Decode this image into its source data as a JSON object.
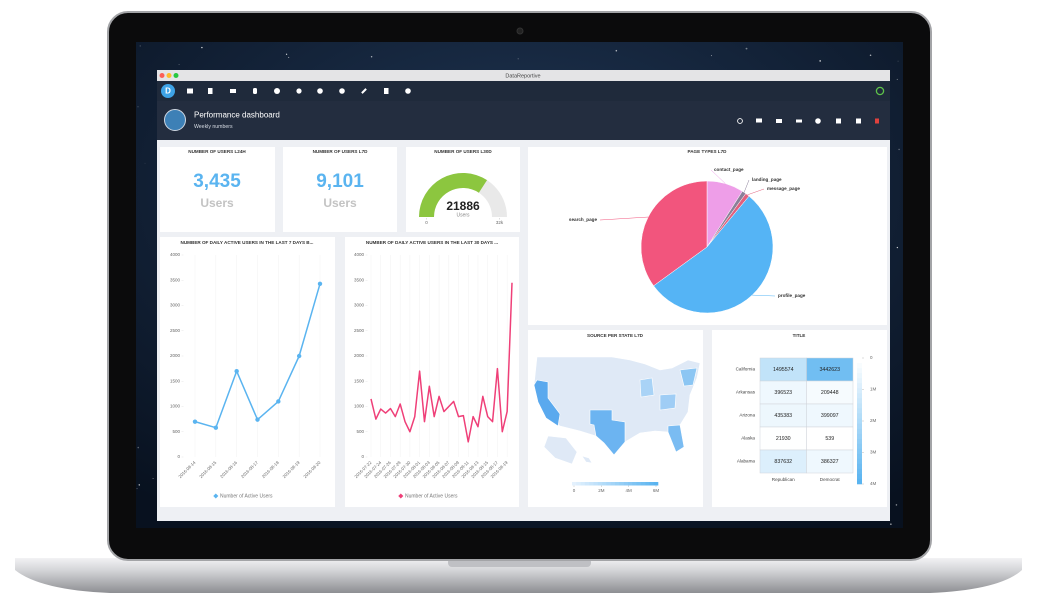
{
  "window_title": "DataReportive",
  "logo": "D",
  "header": {
    "title": "Performance dashboard",
    "subtitle": "Weekly numbers"
  },
  "kpis": [
    {
      "title": "NUMBER OF USERS L24H",
      "value": {
        "value": 3435,
        "label": "3,435"
      },
      "unit": "Users"
    },
    {
      "title": "NUMBER OF USERS L7D",
      "value": {
        "value": 9101,
        "label": "9,101"
      },
      "unit": "Users"
    }
  ],
  "chart_data": [
    {
      "type": "gauge",
      "title": "NUMBER OF USERS L30D",
      "value": 21886,
      "unit": "Users",
      "color": "#8cc63f",
      "lim": [
        0,
        32000
      ],
      "ticks": [
        0,
        {
          "value": 32000,
          "label": "32k"
        }
      ]
    },
    {
      "type": "line",
      "title": "NUMBER OF DAILY ACTIVE USERS IN THE LAST 7 DAYS B...",
      "categories": [
        "2016-08-14",
        "2016-08-15",
        "2016-08-16",
        "2016-08-17",
        "2016-08-18",
        "2016-08-19",
        "2016-08-20"
      ],
      "series": [
        {
          "name": "Number of Active Users",
          "color": "#5ab4f0",
          "values": [
            700,
            580,
            1700,
            740,
            1100,
            2000,
            3430
          ]
        }
      ],
      "markers": true,
      "ylim": [
        0,
        4000
      ],
      "yticks": [
        0,
        500,
        1000,
        1500,
        2000,
        2500,
        3000,
        3500,
        4000
      ]
    },
    {
      "type": "line",
      "title": "NUMBER OF DAILY ACTIVE USERS IN THE LAST 30 DAYS ...",
      "categories": [
        "2016-07-22",
        null,
        "2016-07-24",
        null,
        "2016-07-26",
        null,
        "2016-07-28",
        null,
        "2016-07-30",
        null,
        "2016-08-01",
        null,
        "2016-08-03",
        null,
        "2016-08-05",
        null,
        "2016-08-07",
        null,
        "2016-08-09",
        null,
        "2016-08-11",
        null,
        "2016-08-13",
        null,
        "2016-08-15",
        null,
        "2016-08-17",
        null,
        "2016-08-19",
        null
      ],
      "series": [
        {
          "name": "Number of Active Users",
          "color": "#ef3f78",
          "values": [
            1150,
            750,
            950,
            870,
            960,
            800,
            1050,
            700,
            500,
            800,
            1700,
            700,
            1400,
            800,
            1200,
            900,
            1000,
            1100,
            800,
            820,
            300,
            800,
            600,
            1200,
            800,
            700,
            1750,
            500,
            900,
            3450
          ]
        }
      ],
      "markers": false,
      "ylim": [
        0,
        4000
      ],
      "yticks": [
        0,
        500,
        1000,
        1500,
        2000,
        2500,
        3000,
        3500,
        4000
      ]
    },
    {
      "type": "pie",
      "title": "PAGE TYPES L7D",
      "categories": [
        "contact_page",
        "landing_page",
        "message_page",
        "profile_page",
        "search_page"
      ],
      "values": [
        9,
        1,
        1,
        54,
        35
      ],
      "colors": [
        "#ee9ee8",
        "#8a7f99",
        "#e0607e",
        "#55b4f5",
        "#f2557d"
      ]
    },
    {
      "type": "choropleth",
      "title": "SOURCE PER STATE L7D",
      "color": "#5ab4f0",
      "clim": [
        0,
        6000000
      ],
      "cticks": [
        0,
        {
          "value": 2000000,
          "label": "2M"
        },
        {
          "value": 4000000,
          "label": "4M"
        },
        {
          "value": 6000000,
          "label": "6M"
        }
      ]
    },
    {
      "type": "heatmap",
      "title": "TITLE",
      "rows": [
        "California",
        "Arkansas",
        "Arizona",
        "Alaska",
        "Alabama"
      ],
      "columns": [
        "Republican",
        "Democrat"
      ],
      "values": [
        [
          1495574,
          3442623
        ],
        [
          396523,
          209448
        ],
        [
          435383,
          399097
        ],
        [
          21930,
          539
        ],
        [
          837632,
          386327
        ]
      ],
      "color": "#5ab4f0",
      "clim": [
        0,
        4000000
      ],
      "cticks": [
        0,
        {
          "value": 1000000,
          "label": "1M"
        },
        {
          "value": 2000000,
          "label": "2M"
        },
        {
          "value": 3000000,
          "label": "3M"
        },
        {
          "value": 4000000,
          "label": "4M"
        }
      ]
    }
  ]
}
